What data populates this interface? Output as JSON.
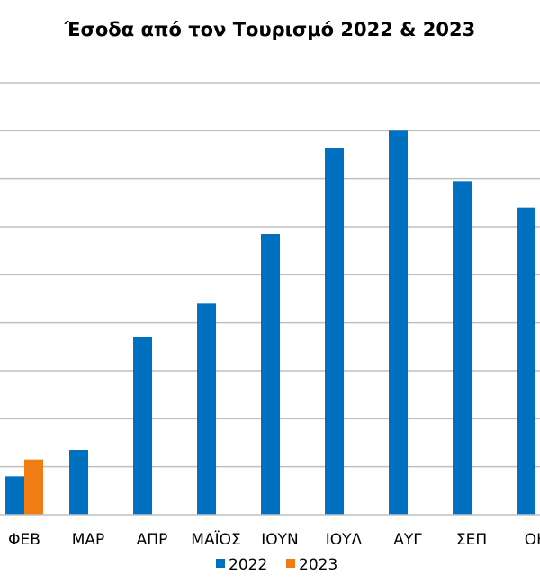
{
  "chart_data": {
    "type": "bar",
    "title": "Έσοδα από τον Τουρισμό 2022 & 2023",
    "xlabel": "",
    "ylabel": "",
    "categories": [
      "ΦΕΒ",
      "ΜΑΡ",
      "ΑΠΡ",
      "ΜΑΪΟΣ",
      "ΙΟΥΝ",
      "ΙΟΥΛ",
      "ΑΥΓ",
      "ΣΕΠ",
      "ΟΚ"
    ],
    "series": [
      {
        "name": "2022",
        "color": "#0070c0",
        "values": [
          0.8,
          1.35,
          3.7,
          4.4,
          5.85,
          7.65,
          8.0,
          6.95,
          6.4
        ]
      },
      {
        "name": "2023",
        "color": "#f07c14",
        "values": [
          1.15,
          null,
          null,
          null,
          null,
          null,
          null,
          null,
          null
        ]
      }
    ],
    "ylim": [
      0,
      9
    ],
    "grid": true,
    "legend": "bottom"
  }
}
